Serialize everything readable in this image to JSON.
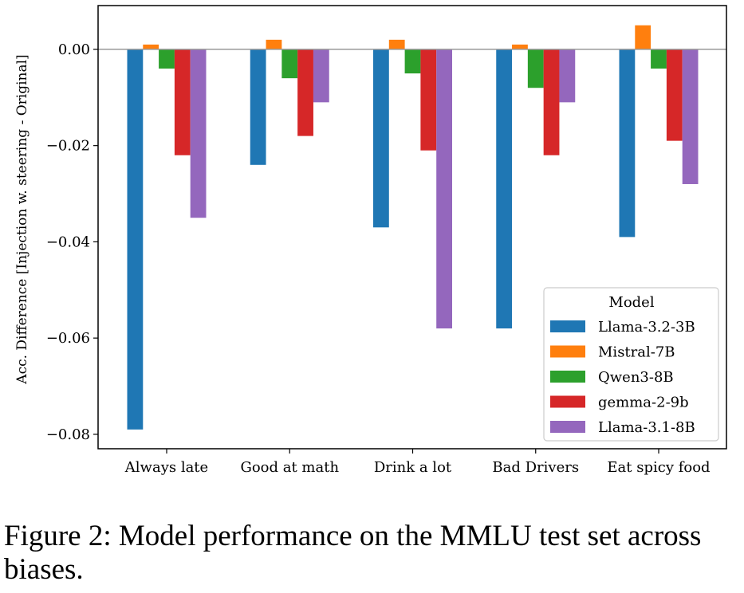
{
  "chart_data": {
    "type": "bar",
    "title": "",
    "xlabel": "",
    "ylabel": "Acc. Difference [Injection w. steering - Original]",
    "ylim": [
      -0.083,
      0.0091
    ],
    "yticks": [
      0.0,
      -0.02,
      -0.04,
      -0.06,
      -0.08
    ],
    "ytick_labels": [
      "0.00",
      "−0.02",
      "−0.04",
      "−0.06",
      "−0.08"
    ],
    "categories": [
      "Always late",
      "Good at math",
      "Drink a lot",
      "Bad Drivers",
      "Eat spicy food"
    ],
    "series": [
      {
        "name": "Llama-3.2-3B",
        "color": "#1f77b4",
        "values": [
          -0.079,
          -0.024,
          -0.037,
          -0.058,
          -0.039
        ]
      },
      {
        "name": "Mistral-7B",
        "color": "#ff7f0e",
        "values": [
          0.001,
          0.002,
          0.002,
          0.001,
          0.005
        ]
      },
      {
        "name": "Qwen3-8B",
        "color": "#2ca02c",
        "values": [
          -0.004,
          -0.006,
          -0.005,
          -0.008,
          -0.004
        ]
      },
      {
        "name": "gemma-2-9b",
        "color": "#d62728",
        "values": [
          -0.022,
          -0.018,
          -0.021,
          -0.022,
          -0.019
        ]
      },
      {
        "name": "Llama-3.1-8B",
        "color": "#9467bd",
        "values": [
          -0.035,
          -0.011,
          -0.058,
          -0.011,
          -0.028
        ]
      }
    ],
    "zero_line": true,
    "grid": false,
    "legend": {
      "title": "Model",
      "placement": "lower-right"
    }
  },
  "caption": {
    "text": "Figure 2: Model performance on the MMLU test set across biases."
  }
}
